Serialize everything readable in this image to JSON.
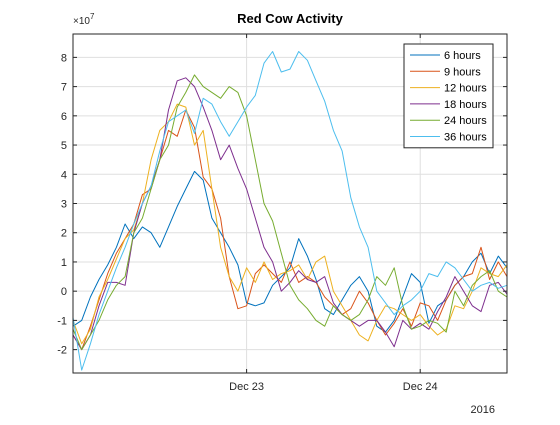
{
  "chart_data": {
    "type": "line",
    "title": "Red Cow Activity",
    "xlabel": "",
    "ylabel": "",
    "y_exponent_label": "×10",
    "y_exponent_value": "7",
    "year_label": "2016",
    "x_tick_labels": [
      "Dec 23",
      "Dec 24"
    ],
    "x_tick_positions_days": [
      1,
      2
    ],
    "xlim_days": [
      0,
      2.5
    ],
    "ylim": [
      -2.8,
      8.8
    ],
    "y_ticks": [
      -2,
      -1,
      0,
      1,
      2,
      3,
      4,
      5,
      6,
      7,
      8
    ],
    "grid": true,
    "legend_position": "top-right",
    "series": [
      {
        "name": "6 hours",
        "color": "#0072bd",
        "x": [
          0,
          0.05,
          0.1,
          0.15,
          0.2,
          0.25,
          0.3,
          0.35,
          0.4,
          0.45,
          0.5,
          0.55,
          0.6,
          0.65,
          0.7,
          0.75,
          0.8,
          0.85,
          0.9,
          0.95,
          1.0,
          1.05,
          1.1,
          1.15,
          1.2,
          1.25,
          1.3,
          1.35,
          1.4,
          1.45,
          1.5,
          1.55,
          1.6,
          1.65,
          1.7,
          1.75,
          1.8,
          1.85,
          1.9,
          1.95,
          2.0,
          2.05,
          2.1,
          2.15,
          2.2,
          2.25,
          2.3,
          2.35,
          2.4,
          2.45,
          2.5
        ],
        "values": [
          -1.2,
          -1.0,
          -0.2,
          0.4,
          0.9,
          1.5,
          2.3,
          1.8,
          2.2,
          2.0,
          1.5,
          2.2,
          2.9,
          3.5,
          4.1,
          3.8,
          2.5,
          2.0,
          1.5,
          0.9,
          -0.4,
          -0.5,
          -0.4,
          0.2,
          0.5,
          0.8,
          1.8,
          1.2,
          0.4,
          -0.6,
          -0.8,
          -0.3,
          0.2,
          0.5,
          0.0,
          -1.2,
          -1.4,
          -1.0,
          -0.2,
          0.6,
          0.3,
          -1.1,
          -0.5,
          -0.3,
          0.2,
          0.5,
          1.0,
          1.3,
          0.6,
          1.2,
          0.8
        ]
      },
      {
        "name": "9 hours",
        "color": "#d95319",
        "x": [
          0,
          0.05,
          0.1,
          0.15,
          0.2,
          0.25,
          0.3,
          0.35,
          0.4,
          0.45,
          0.5,
          0.55,
          0.6,
          0.65,
          0.7,
          0.75,
          0.8,
          0.85,
          0.9,
          0.95,
          1.0,
          1.05,
          1.1,
          1.15,
          1.2,
          1.25,
          1.3,
          1.35,
          1.4,
          1.45,
          1.5,
          1.55,
          1.6,
          1.65,
          1.7,
          1.75,
          1.8,
          1.85,
          1.9,
          1.95,
          2.0,
          2.05,
          2.1,
          2.15,
          2.2,
          2.25,
          2.3,
          2.35,
          2.4,
          2.45,
          2.5
        ],
        "values": [
          -1.5,
          -2.0,
          -1.2,
          -0.3,
          0.6,
          1.3,
          1.8,
          2.3,
          3.3,
          3.5,
          4.5,
          5.5,
          5.3,
          6.2,
          5.6,
          3.9,
          3.5,
          2.5,
          0.5,
          -0.6,
          -0.5,
          0.6,
          0.9,
          0.6,
          0.3,
          1.0,
          0.3,
          0.5,
          0.3,
          -0.2,
          -0.5,
          -0.8,
          -0.6,
          0.0,
          -0.4,
          -1.0,
          -1.5,
          -1.1,
          -0.6,
          -1.2,
          -0.4,
          -0.5,
          -1.0,
          -0.3,
          0.2,
          0.5,
          0.6,
          1.5,
          0.4,
          1.0,
          0.5
        ]
      },
      {
        "name": "12 hours",
        "color": "#edb120",
        "x": [
          0,
          0.05,
          0.1,
          0.15,
          0.2,
          0.25,
          0.3,
          0.35,
          0.4,
          0.45,
          0.5,
          0.55,
          0.6,
          0.65,
          0.7,
          0.75,
          0.8,
          0.85,
          0.9,
          0.95,
          1.0,
          1.05,
          1.1,
          1.15,
          1.2,
          1.25,
          1.3,
          1.35,
          1.4,
          1.45,
          1.5,
          1.55,
          1.6,
          1.65,
          1.7,
          1.75,
          1.8,
          1.85,
          1.9,
          1.95,
          2.0,
          2.05,
          2.1,
          2.15,
          2.2,
          2.25,
          2.3,
          2.35,
          2.4,
          2.45,
          2.5
        ],
        "values": [
          -1.0,
          -1.8,
          -1.3,
          -0.2,
          0.4,
          1.1,
          1.8,
          2.1,
          3.0,
          4.5,
          5.5,
          5.8,
          6.4,
          6.3,
          5.0,
          5.5,
          3.5,
          1.5,
          0.5,
          0.0,
          0.8,
          0.3,
          1.0,
          0.4,
          0.6,
          0.7,
          0.9,
          0.4,
          1.0,
          1.2,
          0.0,
          -0.5,
          -1.0,
          -1.5,
          -1.7,
          -1.0,
          -0.5,
          -0.6,
          -0.8,
          -1.0,
          -0.8,
          -1.2,
          -1.5,
          -1.3,
          -0.5,
          -0.6,
          0.0,
          0.8,
          0.6,
          0.5,
          0.9
        ]
      },
      {
        "name": "18 hours",
        "color": "#7e2f8e",
        "x": [
          0,
          0.05,
          0.1,
          0.15,
          0.2,
          0.25,
          0.3,
          0.35,
          0.4,
          0.45,
          0.5,
          0.55,
          0.6,
          0.65,
          0.7,
          0.75,
          0.8,
          0.85,
          0.9,
          0.95,
          1.0,
          1.05,
          1.1,
          1.15,
          1.2,
          1.25,
          1.3,
          1.35,
          1.4,
          1.45,
          1.5,
          1.55,
          1.6,
          1.65,
          1.7,
          1.75,
          1.8,
          1.85,
          1.9,
          1.95,
          2.0,
          2.05,
          2.1,
          2.15,
          2.2,
          2.25,
          2.3,
          2.35,
          2.4,
          2.45,
          2.5
        ],
        "values": [
          -1.5,
          -2.0,
          -1.5,
          -0.5,
          0.3,
          0.3,
          0.2,
          2.0,
          3.0,
          3.6,
          4.5,
          6.2,
          7.2,
          7.3,
          7.0,
          6.3,
          5.5,
          4.5,
          5.0,
          4.2,
          3.5,
          2.5,
          1.5,
          1.0,
          0.0,
          0.3,
          0.7,
          0.4,
          0.3,
          0.5,
          -0.4,
          -0.8,
          -1.0,
          -1.2,
          -1.0,
          -1.0,
          -1.4,
          -1.9,
          -1.0,
          -1.3,
          -1.1,
          -1.3,
          -0.7,
          -0.2,
          0.5,
          0.0,
          -0.5,
          -0.7,
          0.2,
          0.3,
          -0.1
        ]
      },
      {
        "name": "24 hours",
        "color": "#77ac30",
        "x": [
          0,
          0.05,
          0.1,
          0.15,
          0.2,
          0.25,
          0.3,
          0.35,
          0.4,
          0.45,
          0.5,
          0.55,
          0.6,
          0.65,
          0.7,
          0.75,
          0.8,
          0.85,
          0.9,
          0.95,
          1.0,
          1.05,
          1.1,
          1.15,
          1.2,
          1.25,
          1.3,
          1.35,
          1.4,
          1.45,
          1.5,
          1.55,
          1.6,
          1.65,
          1.7,
          1.75,
          1.8,
          1.85,
          1.9,
          1.95,
          2.0,
          2.05,
          2.1,
          2.15,
          2.2,
          2.25,
          2.3,
          2.35,
          2.4,
          2.45,
          2.5
        ],
        "values": [
          -1.3,
          -2.0,
          -1.5,
          -1.0,
          -0.3,
          0.2,
          0.5,
          2.0,
          2.5,
          3.5,
          4.5,
          5.0,
          6.3,
          6.8,
          7.4,
          7.0,
          6.8,
          6.6,
          7.0,
          6.8,
          6.0,
          4.5,
          3.0,
          2.4,
          1.3,
          0.2,
          -0.3,
          -0.6,
          -1.0,
          -1.2,
          -0.5,
          -0.8,
          -1.0,
          -0.8,
          -0.3,
          0.5,
          0.2,
          0.8,
          -0.5,
          -1.3,
          -1.2,
          -1.0,
          -1.1,
          -1.4,
          0.0,
          -0.5,
          0.2,
          0.5,
          0.7,
          0.0,
          -0.2
        ]
      },
      {
        "name": "36 hours",
        "color": "#4dbeee",
        "x": [
          0,
          0.05,
          0.1,
          0.15,
          0.2,
          0.25,
          0.3,
          0.35,
          0.4,
          0.45,
          0.5,
          0.55,
          0.6,
          0.65,
          0.7,
          0.75,
          0.8,
          0.85,
          0.9,
          0.95,
          1.0,
          1.05,
          1.1,
          1.15,
          1.2,
          1.25,
          1.3,
          1.35,
          1.4,
          1.45,
          1.5,
          1.55,
          1.6,
          1.65,
          1.7,
          1.75,
          1.8,
          1.85,
          1.9,
          1.95,
          2.0,
          2.05,
          2.1,
          2.15,
          2.2,
          2.25,
          2.3,
          2.35,
          2.4,
          2.45,
          2.5
        ],
        "values": [
          -0.9,
          -2.7,
          -1.8,
          -0.8,
          0.0,
          0.8,
          1.5,
          2.3,
          3.0,
          3.6,
          4.8,
          5.8,
          6.0,
          6.2,
          5.4,
          6.6,
          6.4,
          5.8,
          5.3,
          5.8,
          6.3,
          6.7,
          7.8,
          8.2,
          7.5,
          7.6,
          8.2,
          7.9,
          7.2,
          6.5,
          5.5,
          4.8,
          3.2,
          2.2,
          1.5,
          0.0,
          -0.4,
          -0.8,
          -0.5,
          -0.3,
          0.0,
          0.6,
          0.5,
          1.0,
          0.8,
          0.4,
          0.0,
          0.2,
          0.3,
          0.1,
          0.2
        ]
      }
    ]
  }
}
